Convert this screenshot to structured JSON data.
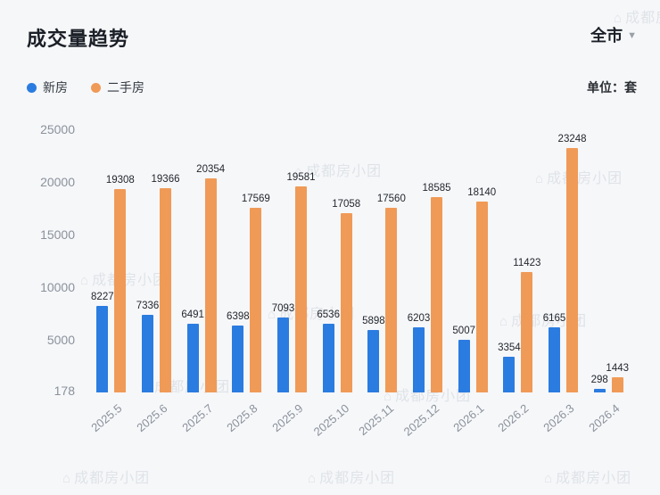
{
  "header": {
    "title": "成交量趋势",
    "region": "全市",
    "region_caret": "▼",
    "unit_label": "单位：套"
  },
  "legend": [
    {
      "label": "新房",
      "color": "#2b7ce0"
    },
    {
      "label": "二手房",
      "color": "#f09a57"
    }
  ],
  "watermark": {
    "icon": "⌂",
    "text": "成都房小团"
  },
  "chart_data": {
    "type": "bar",
    "title": "成交量趋势",
    "unit": "套",
    "categories": [
      "2025.5",
      "2025.6",
      "2025.7",
      "2025.8",
      "2025.9",
      "2025.10",
      "2025.11",
      "2025.12",
      "2026.1",
      "2026.2",
      "2026.3",
      "2026.4"
    ],
    "series": [
      {
        "name": "新房",
        "color": "#2b7ce0",
        "values": [
          8227,
          7336,
          6491,
          6398,
          7093,
          6536,
          5898,
          6203,
          5007,
          3354,
          6165,
          298
        ]
      },
      {
        "name": "二手房",
        "color": "#f09a57",
        "values": [
          19308,
          19366,
          20354,
          17569,
          19581,
          17058,
          17560,
          18585,
          18140,
          11423,
          23248,
          1443
        ]
      }
    ],
    "y_ticks": [
      25000,
      20000,
      15000,
      10000,
      5000,
      178
    ],
    "ylim": [
      0,
      25000
    ],
    "grid": false,
    "legend_position": "top-left",
    "data_labels": true
  }
}
